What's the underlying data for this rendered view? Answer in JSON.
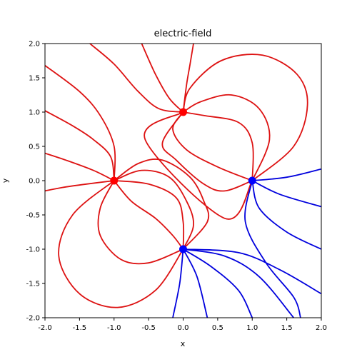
{
  "chart_data": {
    "type": "line",
    "title": "electric-field",
    "xlabel": "x",
    "ylabel": "y",
    "xlim": [
      -2,
      2
    ],
    "ylim": [
      -2,
      2
    ],
    "x_ticks": [
      "-2.0",
      "-1.5",
      "-1.0",
      "-0.5",
      "0.0",
      "0.5",
      "1.0",
      "1.5",
      "2.0"
    ],
    "y_ticks": [
      "-2.0",
      "-1.5",
      "-1.0",
      "-0.5",
      "0.0",
      "0.5",
      "1.0",
      "1.5",
      "2.0"
    ],
    "grid": false,
    "charges": [
      {
        "x": -1,
        "y": 0,
        "color": "#ff0000"
      },
      {
        "x": 0,
        "y": 1,
        "color": "#ff0000"
      },
      {
        "x": 0,
        "y": -1,
        "color": "#0000ff"
      },
      {
        "x": 1,
        "y": 0,
        "color": "#0000ff"
      }
    ],
    "series": [
      {
        "color": "#dd1111",
        "points": [
          [
            -1,
            0
          ],
          [
            -1.0,
            0.5
          ],
          [
            -1.2,
            0.95
          ],
          [
            -1.5,
            1.3
          ],
          [
            -2,
            1.68
          ]
        ]
      },
      {
        "color": "#dd1111",
        "points": [
          [
            -1,
            0
          ],
          [
            -1.05,
            0.35
          ],
          [
            -1.3,
            0.6
          ],
          [
            -1.6,
            0.8
          ],
          [
            -2,
            1.02
          ]
        ]
      },
      {
        "color": "#dd1111",
        "points": [
          [
            -1,
            0
          ],
          [
            -1.3,
            0.15
          ],
          [
            -1.7,
            0.3
          ],
          [
            -2,
            0.4
          ]
        ]
      },
      {
        "color": "#dd1111",
        "points": [
          [
            -1,
            0
          ],
          [
            -1.4,
            -0.05
          ],
          [
            -1.75,
            -0.1
          ],
          [
            -2,
            -0.15
          ]
        ]
      },
      {
        "color": "#dd1111",
        "points": [
          [
            0,
            1
          ],
          [
            -0.35,
            1.05
          ],
          [
            -0.65,
            1.3
          ],
          [
            -1.0,
            1.7
          ],
          [
            -1.35,
            2
          ]
        ]
      },
      {
        "color": "#dd1111",
        "points": [
          [
            0,
            1
          ],
          [
            -0.2,
            1.2
          ],
          [
            -0.4,
            1.55
          ],
          [
            -0.6,
            2
          ]
        ]
      },
      {
        "color": "#dd1111",
        "points": [
          [
            0,
            1
          ],
          [
            0.05,
            1.4
          ],
          [
            0.1,
            1.7
          ],
          [
            0.15,
            2
          ]
        ]
      },
      {
        "color": "#dd1111",
        "points": [
          [
            0,
            1
          ],
          [
            0.1,
            1.35
          ],
          [
            0.55,
            1.75
          ],
          [
            1.15,
            1.83
          ],
          [
            1.65,
            1.55
          ],
          [
            1.8,
            1.1
          ],
          [
            1.6,
            0.5
          ],
          [
            1,
            0
          ]
        ]
      },
      {
        "color": "#dd1111",
        "points": [
          [
            0,
            1
          ],
          [
            0.25,
            1.15
          ],
          [
            0.7,
            1.25
          ],
          [
            1.1,
            1.05
          ],
          [
            1.25,
            0.6
          ],
          [
            1,
            0
          ]
        ]
      },
      {
        "color": "#dd1111",
        "points": [
          [
            0,
            1
          ],
          [
            0.3,
            0.95
          ],
          [
            0.8,
            0.85
          ],
          [
            1.0,
            0.55
          ],
          [
            1,
            0
          ]
        ]
      },
      {
        "color": "#dd1111",
        "points": [
          [
            0,
            1
          ],
          [
            -0.15,
            0.75
          ],
          [
            0.05,
            0.45
          ],
          [
            0.5,
            0.2
          ],
          [
            1,
            0
          ]
        ]
      },
      {
        "color": "#dd1111",
        "points": [
          [
            0,
            1
          ],
          [
            -0.3,
            0.55
          ],
          [
            -0.1,
            0.3
          ],
          [
            0.3,
            -0.05
          ],
          [
            0.6,
            -0.15
          ],
          [
            1,
            0
          ]
        ]
      },
      {
        "color": "#dd1111",
        "points": [
          [
            0,
            1
          ],
          [
            -0.55,
            0.6
          ],
          [
            0.6,
            -0.55
          ],
          [
            1,
            0
          ]
        ]
      },
      {
        "color": "#dd1111",
        "points": [
          [
            -1,
            0
          ],
          [
            -0.65,
            0.25
          ],
          [
            -0.3,
            0.3
          ],
          [
            0.1,
            0.05
          ],
          [
            0.3,
            -0.3
          ],
          [
            0.35,
            -0.6
          ],
          [
            0,
            -1
          ]
        ]
      },
      {
        "color": "#dd1111",
        "points": [
          [
            -1,
            0
          ],
          [
            -0.6,
            0.15
          ],
          [
            -0.2,
            0.05
          ],
          [
            0.05,
            -0.3
          ],
          [
            0.15,
            -0.65
          ],
          [
            0,
            -1
          ]
        ]
      },
      {
        "color": "#dd1111",
        "points": [
          [
            -1,
            0
          ],
          [
            -0.5,
            -0.05
          ],
          [
            -0.1,
            -0.25
          ],
          [
            0.0,
            -0.6
          ],
          [
            0,
            -1
          ]
        ]
      },
      {
        "color": "#dd1111",
        "points": [
          [
            -1,
            0
          ],
          [
            -0.75,
            -0.3
          ],
          [
            -0.4,
            -0.55
          ],
          [
            -0.15,
            -0.8
          ],
          [
            0,
            -1
          ]
        ]
      },
      {
        "color": "#dd1111",
        "points": [
          [
            -1,
            0
          ],
          [
            -1.2,
            -0.4
          ],
          [
            -1.2,
            -0.8
          ],
          [
            -0.9,
            -1.15
          ],
          [
            -0.5,
            -1.2
          ],
          [
            0,
            -1
          ]
        ]
      },
      {
        "color": "#dd1111",
        "points": [
          [
            -1,
            0
          ],
          [
            -1.6,
            -0.5
          ],
          [
            -1.8,
            -1.1
          ],
          [
            -1.5,
            -1.65
          ],
          [
            -0.95,
            -1.85
          ],
          [
            -0.4,
            -1.6
          ],
          [
            0,
            -1
          ]
        ]
      },
      {
        "color": "#0000dd",
        "points": [
          [
            0,
            -1
          ],
          [
            -0.05,
            -1.5
          ],
          [
            -0.15,
            -2
          ]
        ]
      },
      {
        "color": "#0000dd",
        "points": [
          [
            0,
            -1
          ],
          [
            0.2,
            -1.4
          ],
          [
            0.35,
            -2
          ]
        ]
      },
      {
        "color": "#0000dd",
        "points": [
          [
            0,
            -1
          ],
          [
            0.4,
            -1.25
          ],
          [
            0.8,
            -1.6
          ],
          [
            1.0,
            -2
          ]
        ]
      },
      {
        "color": "#0000dd",
        "points": [
          [
            0,
            -1
          ],
          [
            0.6,
            -1.1
          ],
          [
            1.1,
            -1.4
          ],
          [
            1.6,
            -2
          ]
        ]
      },
      {
        "color": "#0000dd",
        "points": [
          [
            0,
            -1
          ],
          [
            0.8,
            -1.05
          ],
          [
            1.4,
            -1.3
          ],
          [
            2,
            -1.65
          ]
        ]
      },
      {
        "color": "#0000dd",
        "points": [
          [
            1,
            0
          ],
          [
            1.1,
            -0.4
          ],
          [
            1.5,
            -0.75
          ],
          [
            2,
            -1
          ]
        ]
      },
      {
        "color": "#0000dd",
        "points": [
          [
            1,
            0
          ],
          [
            1.4,
            -0.2
          ],
          [
            2,
            -0.38
          ]
        ]
      },
      {
        "color": "#0000dd",
        "points": [
          [
            1,
            0
          ],
          [
            1.5,
            0.05
          ],
          [
            2,
            0.17
          ]
        ]
      },
      {
        "color": "#0000dd",
        "points": [
          [
            1,
            0
          ],
          [
            0.9,
            -0.6
          ],
          [
            1.2,
            -1.2
          ],
          [
            1.6,
            -1.7
          ],
          [
            1.7,
            -2
          ]
        ]
      }
    ]
  }
}
